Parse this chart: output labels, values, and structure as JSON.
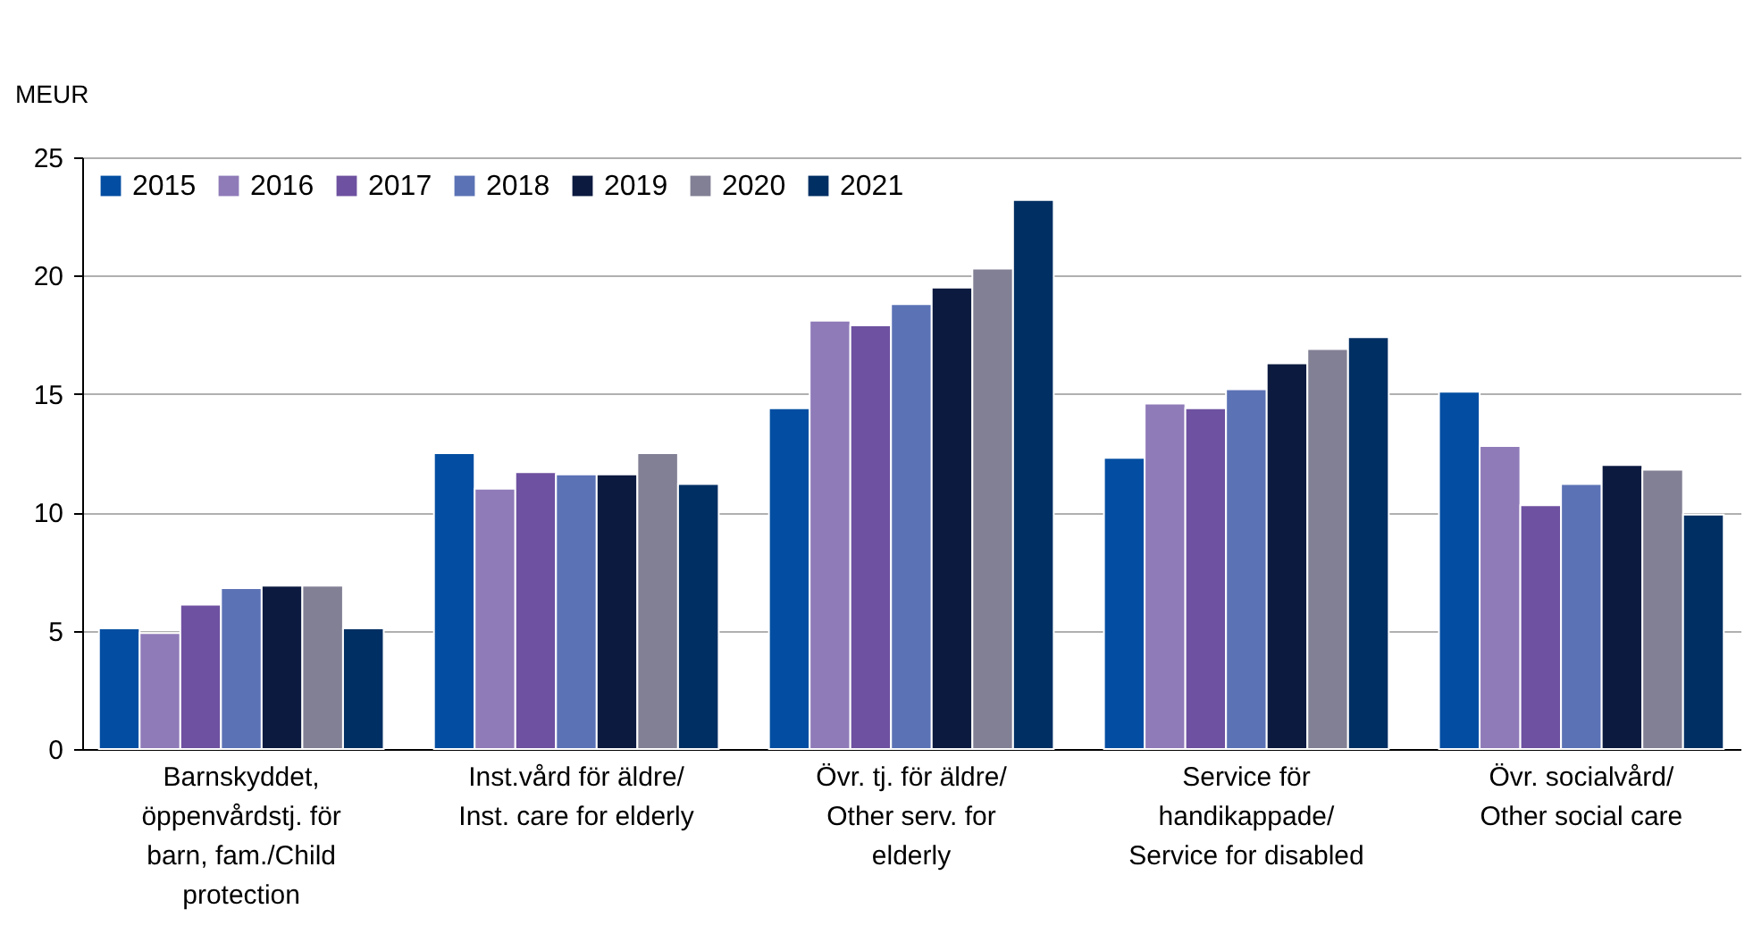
{
  "chart_data": {
    "type": "bar",
    "ylabel": "MEUR",
    "categories": [
      "Barnskyddet, öppenvårdstj. för barn, fam./Child protection",
      "Inst.vård för äldre/ Inst. care for elderly",
      "Övr. tj. för äldre/ Other serv. for elderly",
      "Service för handikappade/ Service for disabled",
      "Övr. socialvård/ Other social care"
    ],
    "series": [
      {
        "name": "2015",
        "color": "#034ea2",
        "values": [
          5.1,
          12.5,
          14.4,
          12.3,
          15.1
        ]
      },
      {
        "name": "2016",
        "color": "#8f7bb8",
        "values": [
          4.9,
          11.0,
          18.1,
          14.6,
          12.8
        ]
      },
      {
        "name": "2017",
        "color": "#6e51a0",
        "values": [
          6.1,
          11.7,
          17.9,
          14.4,
          10.3
        ]
      },
      {
        "name": "2018",
        "color": "#5b72b5",
        "values": [
          6.8,
          11.6,
          18.8,
          15.2,
          11.2
        ]
      },
      {
        "name": "2019",
        "color": "#0c1a40",
        "values": [
          6.9,
          11.6,
          19.5,
          16.3,
          12.0
        ]
      },
      {
        "name": "2020",
        "color": "#828095",
        "values": [
          6.9,
          12.5,
          20.3,
          16.9,
          11.8
        ]
      },
      {
        "name": "2021",
        "color": "#002f63",
        "values": [
          5.1,
          11.2,
          23.2,
          17.4,
          9.9
        ]
      }
    ],
    "ylim": [
      0,
      25
    ],
    "yticks": [
      0,
      5,
      10,
      15,
      20,
      25
    ],
    "grid": "y",
    "legend": "top left"
  }
}
